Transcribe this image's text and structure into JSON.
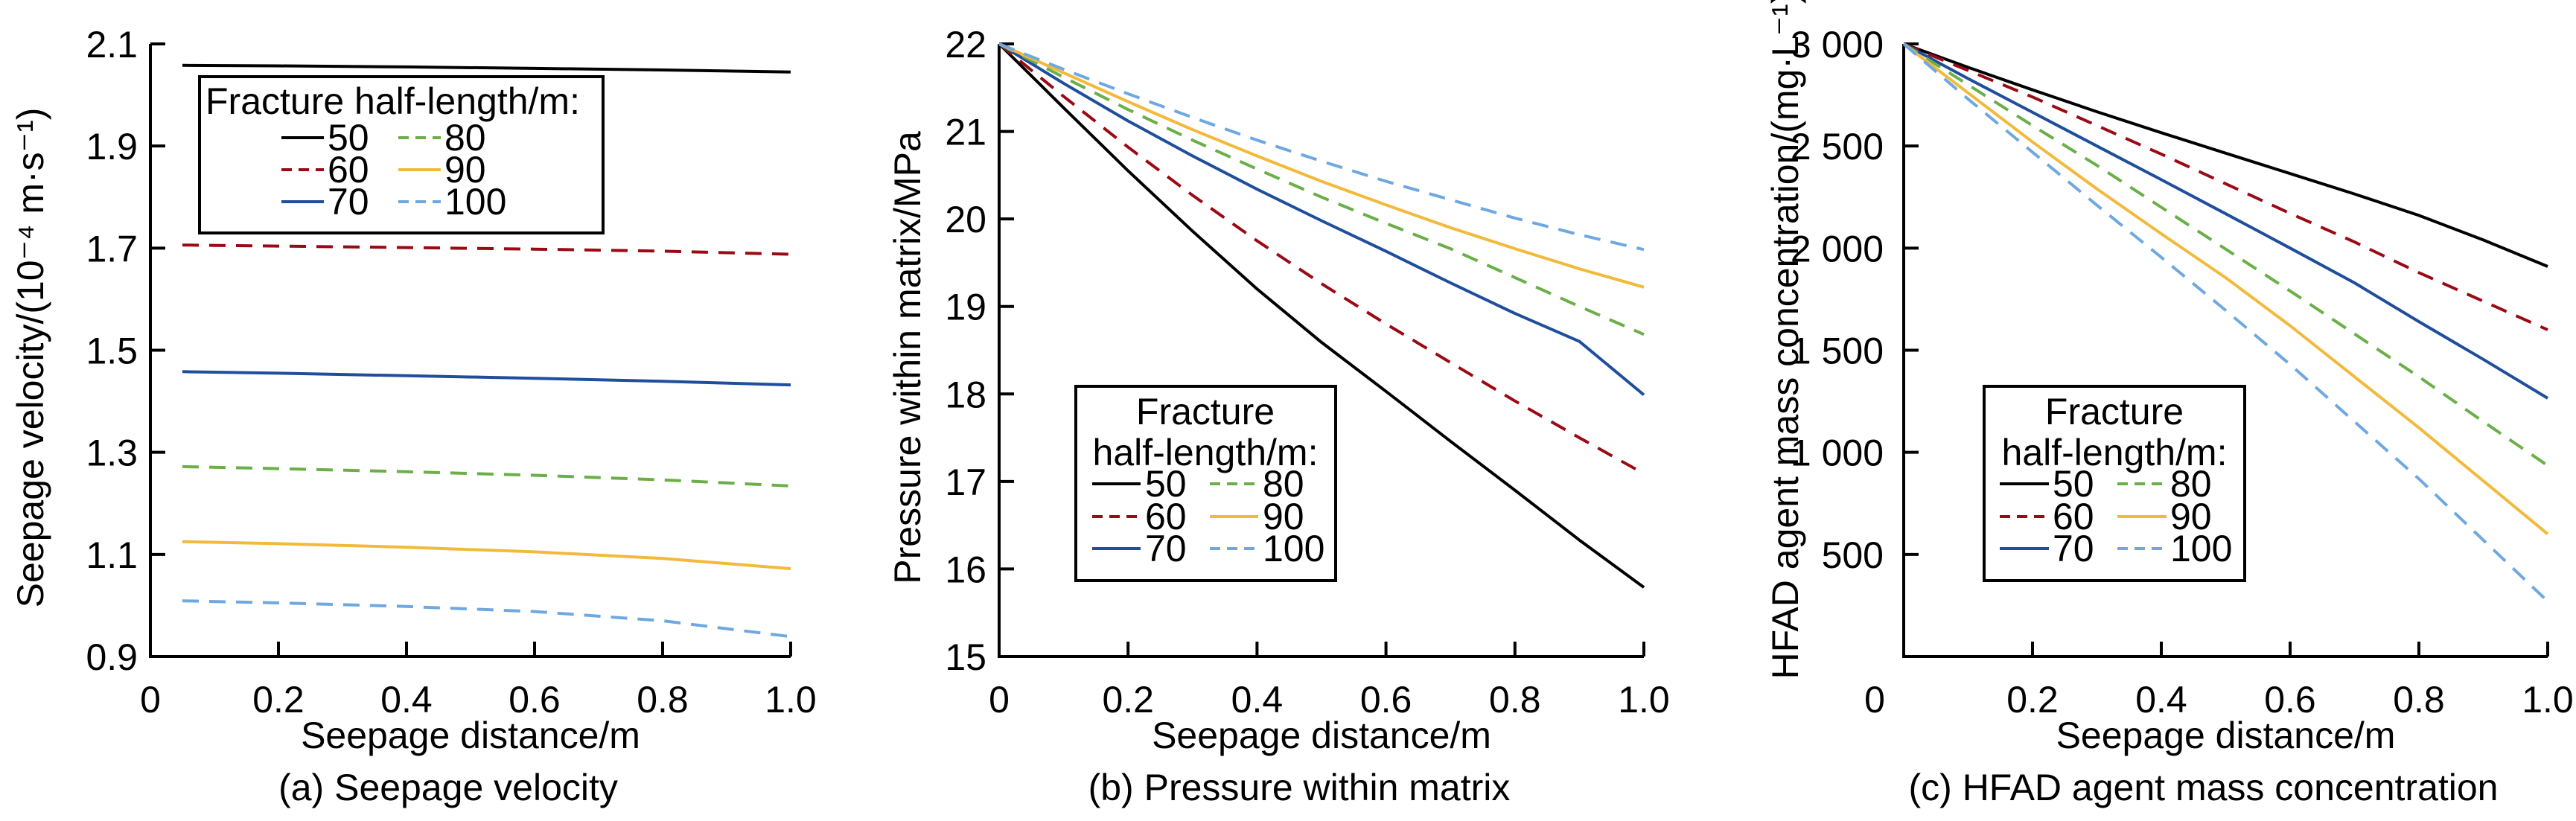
{
  "chart_data": [
    {
      "type": "line",
      "panel": "a",
      "caption": "(a) Seepage velocity",
      "title": "",
      "xlabel": "Seepage distance/m",
      "ylabel": "Seepage velocity/(10⁻⁴ m·s⁻¹)",
      "xlim": [
        0,
        1.0
      ],
      "ylim": [
        0.9,
        2.1
      ],
      "xticks": [
        0,
        0.2,
        0.4,
        0.6,
        0.8,
        1.0
      ],
      "xtick_labels": [
        "0",
        "0.2",
        "0.4",
        "0.6",
        "0.8",
        "1.0"
      ],
      "yticks": [
        0.9,
        1.1,
        1.3,
        1.5,
        1.7,
        1.9,
        2.1
      ],
      "ytick_labels": [
        "0.9",
        "1.1",
        "1.3",
        "1.5",
        "1.7",
        "1.9",
        "2.1"
      ],
      "grid": false,
      "legend": {
        "title_lines": [
          "Fracture half-length/m:"
        ],
        "placement": "top-left",
        "columns": 2
      },
      "x": [
        0.05,
        0.2,
        0.4,
        0.6,
        0.8,
        1.0
      ],
      "series": [
        {
          "name": "50",
          "color": "#000000",
          "dash": "solid",
          "values": [
            2.058,
            2.057,
            2.055,
            2.052,
            2.049,
            2.045
          ]
        },
        {
          "name": "60",
          "color": "#9B0A14",
          "dash": "dashed",
          "values": [
            1.706,
            1.704,
            1.701,
            1.698,
            1.694,
            1.688
          ]
        },
        {
          "name": "70",
          "color": "#1F4E9C",
          "dash": "solid",
          "values": [
            1.458,
            1.455,
            1.45,
            1.445,
            1.439,
            1.432
          ]
        },
        {
          "name": "80",
          "color": "#6AAF47",
          "dash": "dashed",
          "values": [
            1.272,
            1.268,
            1.262,
            1.255,
            1.246,
            1.234
          ]
        },
        {
          "name": "90",
          "color": "#F2B93B",
          "dash": "solid",
          "values": [
            1.125,
            1.121,
            1.114,
            1.105,
            1.092,
            1.072
          ]
        },
        {
          "name": "100",
          "color": "#6FA8E0",
          "dash": "dashed",
          "values": [
            1.009,
            1.005,
            0.998,
            0.988,
            0.97,
            0.939
          ]
        }
      ]
    },
    {
      "type": "line",
      "panel": "b",
      "caption": "(b) Pressure within matrix",
      "title": "",
      "xlabel": "Seepage distance/m",
      "ylabel": "Pressure within matrix/MPa",
      "xlim": [
        0,
        1.0
      ],
      "ylim": [
        15,
        22
      ],
      "xticks": [
        0,
        0.2,
        0.4,
        0.6,
        0.8,
        1.0
      ],
      "xtick_labels": [
        "0",
        "0.2",
        "0.4",
        "0.6",
        "0.8",
        "1.0"
      ],
      "yticks": [
        15,
        16,
        17,
        18,
        19,
        20,
        21,
        22
      ],
      "ytick_labels": [
        "15",
        "16",
        "17",
        "18",
        "19",
        "20",
        "21",
        "22"
      ],
      "grid": false,
      "legend": {
        "title_lines": [
          "Fracture",
          "half-length/m:"
        ],
        "placement": "bottom-left",
        "columns": 2
      },
      "x": [
        0,
        0.1,
        0.2,
        0.3,
        0.4,
        0.5,
        0.6,
        0.7,
        0.8,
        0.9,
        1.0
      ],
      "series": [
        {
          "name": "50",
          "color": "#000000",
          "dash": "solid",
          "values": [
            22.0,
            21.27,
            20.55,
            19.86,
            19.2,
            18.59,
            18.03,
            17.46,
            16.9,
            16.33,
            15.79
          ]
        },
        {
          "name": "60",
          "color": "#9B0A14",
          "dash": "dashed",
          "values": [
            22.0,
            21.4,
            20.82,
            20.27,
            19.75,
            19.26,
            18.8,
            18.36,
            17.92,
            17.5,
            17.09
          ]
        },
        {
          "name": "70",
          "color": "#1F4E9C",
          "dash": "solid",
          "values": [
            22.0,
            21.55,
            21.12,
            20.72,
            20.34,
            19.98,
            19.63,
            19.27,
            18.92,
            18.6,
            17.99
          ]
        },
        {
          "name": "80",
          "color": "#6AAF47",
          "dash": "dashed",
          "values": [
            22.0,
            21.62,
            21.25,
            20.9,
            20.57,
            20.25,
            19.95,
            19.66,
            19.33,
            19.0,
            18.68
          ]
        },
        {
          "name": "90",
          "color": "#F2B93B",
          "dash": "solid",
          "values": [
            22.0,
            21.67,
            21.34,
            21.02,
            20.72,
            20.43,
            20.16,
            19.9,
            19.66,
            19.43,
            19.22
          ]
        },
        {
          "name": "100",
          "color": "#6FA8E0",
          "dash": "dashed",
          "values": [
            22.0,
            21.71,
            21.43,
            21.16,
            20.9,
            20.66,
            20.43,
            20.22,
            20.01,
            19.82,
            19.65
          ]
        }
      ]
    },
    {
      "type": "line",
      "panel": "c",
      "caption": "(c) HFAD agent mass concentration",
      "title": "",
      "xlabel": "Seepage distance/m",
      "ylabel": "HFAD agent mass concentration/(mg·L⁻¹)",
      "xlim": [
        0,
        1.0
      ],
      "ylim": [
        0,
        3000
      ],
      "xticks": [
        0,
        0.2,
        0.4,
        0.6,
        0.8,
        1.0
      ],
      "xtick_labels": [
        "0",
        "0.2",
        "0.4",
        "0.6",
        "0.8",
        "1.0"
      ],
      "yticks": [
        500,
        1000,
        1500,
        2000,
        2500,
        3000
      ],
      "ytick_labels": [
        "500",
        "1 000",
        "1 500",
        "2 000",
        "2 500",
        "3 000"
      ],
      "grid": false,
      "legend": {
        "title_lines": [
          "Fracture",
          "half-length/m:"
        ],
        "placement": "bottom-left",
        "columns": 2
      },
      "x": [
        0,
        0.1,
        0.2,
        0.3,
        0.4,
        0.5,
        0.6,
        0.7,
        0.8,
        0.9,
        1.0
      ],
      "series": [
        {
          "name": "50",
          "color": "#000000",
          "dash": "solid",
          "values": [
            3000,
            2885,
            2775,
            2668,
            2565,
            2465,
            2365,
            2265,
            2160,
            2040,
            1910
          ]
        },
        {
          "name": "60",
          "color": "#9B0A14",
          "dash": "dashed",
          "values": [
            3000,
            2870,
            2740,
            2600,
            2460,
            2315,
            2170,
            2030,
            1880,
            1740,
            1600
          ]
        },
        {
          "name": "70",
          "color": "#1F4E9C",
          "dash": "solid",
          "values": [
            3000,
            2830,
            2665,
            2500,
            2335,
            2168,
            2000,
            1830,
            1640,
            1455,
            1265
          ]
        },
        {
          "name": "80",
          "color": "#6AAF47",
          "dash": "dashed",
          "values": [
            3000,
            2800,
            2600,
            2405,
            2200,
            1995,
            1790,
            1580,
            1370,
            1150,
            935
          ]
        },
        {
          "name": "90",
          "color": "#F2B93B",
          "dash": "solid",
          "values": [
            3000,
            2760,
            2520,
            2290,
            2070,
            1855,
            1620,
            1370,
            1120,
            860,
            600
          ]
        },
        {
          "name": "100",
          "color": "#6FA8E0",
          "dash": "dashed",
          "values": [
            3000,
            2730,
            2470,
            2210,
            1955,
            1695,
            1430,
            1150,
            870,
            570,
            270
          ]
        }
      ]
    }
  ]
}
